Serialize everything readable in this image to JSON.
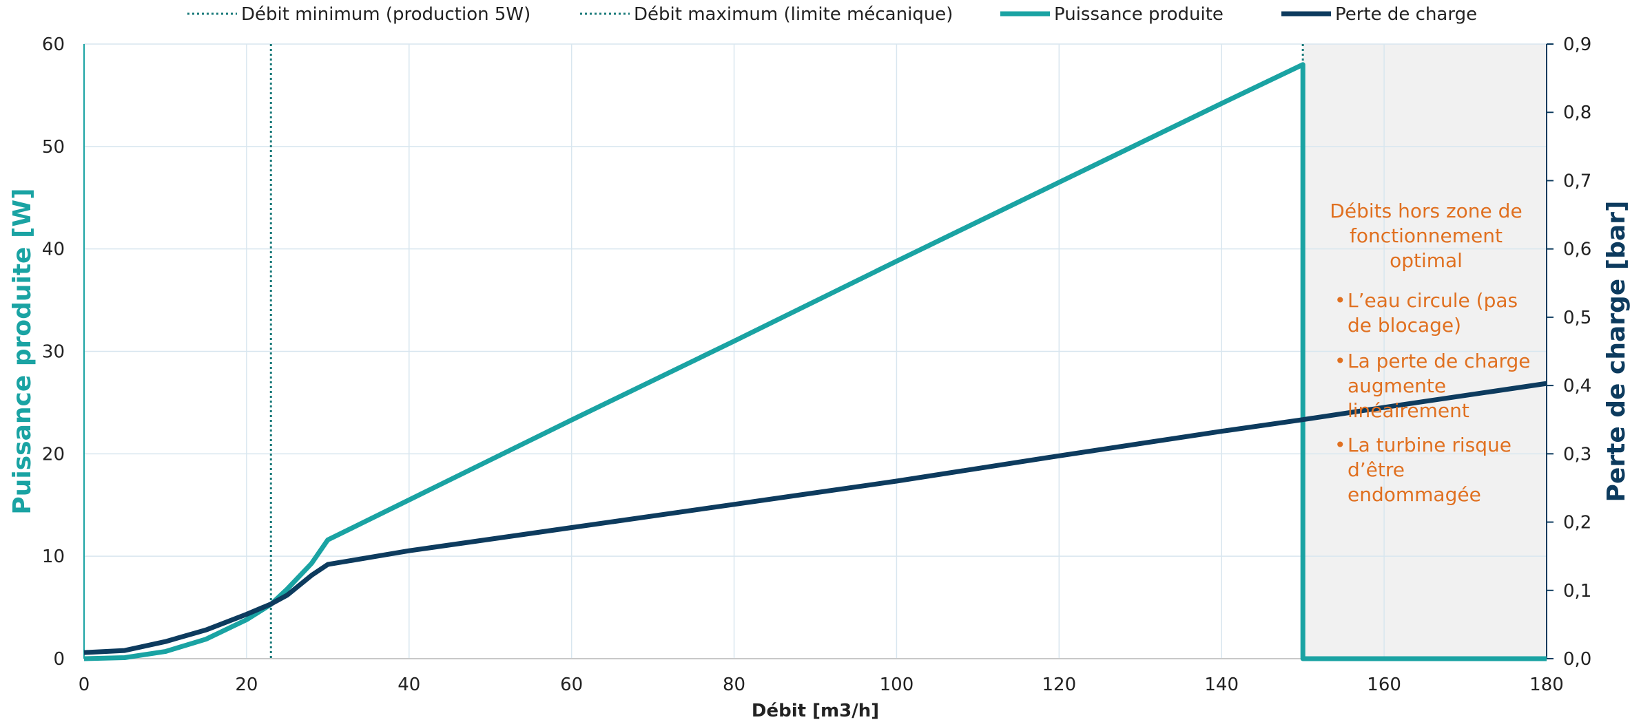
{
  "colors": {
    "power": "#1aa3a3",
    "loss": "#0d3b5e",
    "min_line": "#1a7a7a",
    "max_line": "#1a7a7a",
    "zone_fill": "#f1f1f1",
    "annotation": "#e07020",
    "grid": "#d8e6ef"
  },
  "chart_data": {
    "type": "line",
    "x_axis": {
      "label": "Débit [m3/h]",
      "min": 0,
      "max": 180,
      "ticks": [
        0,
        20,
        40,
        60,
        80,
        100,
        120,
        140,
        160,
        180
      ]
    },
    "y_left": {
      "label": "Puissance produite [W]",
      "min": 0,
      "max": 60,
      "ticks": [
        0,
        10,
        20,
        30,
        40,
        50,
        60
      ],
      "tick_labels": [
        "0",
        "10",
        "20",
        "30",
        "40",
        "50",
        "60"
      ]
    },
    "y_right": {
      "label": "Perte de charge [bar]",
      "min": 0,
      "max": 0.9,
      "ticks": [
        0,
        0.1,
        0.2,
        0.3,
        0.4,
        0.5,
        0.6,
        0.7,
        0.8,
        0.9
      ],
      "tick_labels": [
        "0,0",
        "0,1",
        "0,2",
        "0,3",
        "0,4",
        "0,5",
        "0,6",
        "0,7",
        "0,8",
        "0,9"
      ]
    },
    "grid": true,
    "legend_position": "top",
    "legend": [
      {
        "label": "Débit minimum (production 5W)",
        "style": "dotted"
      },
      {
        "label": "Débit maximum (limite mécanique)",
        "style": "dotted"
      },
      {
        "label": "Puissance produite",
        "style": "solid"
      },
      {
        "label": "Perte de charge",
        "style": "solid"
      }
    ],
    "vlines": {
      "min_flow": 23,
      "max_flow": 150
    },
    "shaded_zone": {
      "from": 150,
      "to": 180
    },
    "series": [
      {
        "name": "Puissance produite",
        "axis": "left",
        "points": [
          [
            0,
            0
          ],
          [
            5,
            0.1
          ],
          [
            10,
            0.7
          ],
          [
            15,
            1.9
          ],
          [
            20,
            3.8
          ],
          [
            23,
            5.3
          ],
          [
            25,
            6.8
          ],
          [
            28,
            9.3
          ],
          [
            30,
            11.6
          ],
          [
            40,
            15.5
          ],
          [
            60,
            23.3
          ],
          [
            80,
            31.0
          ],
          [
            100,
            38.8
          ],
          [
            120,
            46.5
          ],
          [
            140,
            54.2
          ],
          [
            150,
            58.0
          ],
          [
            150,
            0
          ],
          [
            180,
            0
          ]
        ]
      },
      {
        "name": "Perte de charge",
        "axis": "right",
        "points": [
          [
            0,
            0.009
          ],
          [
            5,
            0.012
          ],
          [
            10,
            0.025
          ],
          [
            15,
            0.042
          ],
          [
            20,
            0.065
          ],
          [
            23,
            0.08
          ],
          [
            25,
            0.093
          ],
          [
            28,
            0.122
          ],
          [
            30,
            0.138
          ],
          [
            40,
            0.158
          ],
          [
            60,
            0.192
          ],
          [
            80,
            0.226
          ],
          [
            100,
            0.26
          ],
          [
            120,
            0.297
          ],
          [
            140,
            0.333
          ],
          [
            150,
            0.35
          ],
          [
            160,
            0.368
          ],
          [
            180,
            0.403
          ]
        ]
      }
    ],
    "annotation": {
      "title_lines": [
        "Débits hors zone de",
        "fonctionnement",
        "optimal"
      ],
      "bullets": [
        [
          "L’eau circule (pas",
          "de blocage)"
        ],
        [
          "La perte de charge",
          "augmente",
          "linéairement"
        ],
        [
          "La turbine risque",
          "d’être",
          "endommagée"
        ]
      ]
    }
  }
}
